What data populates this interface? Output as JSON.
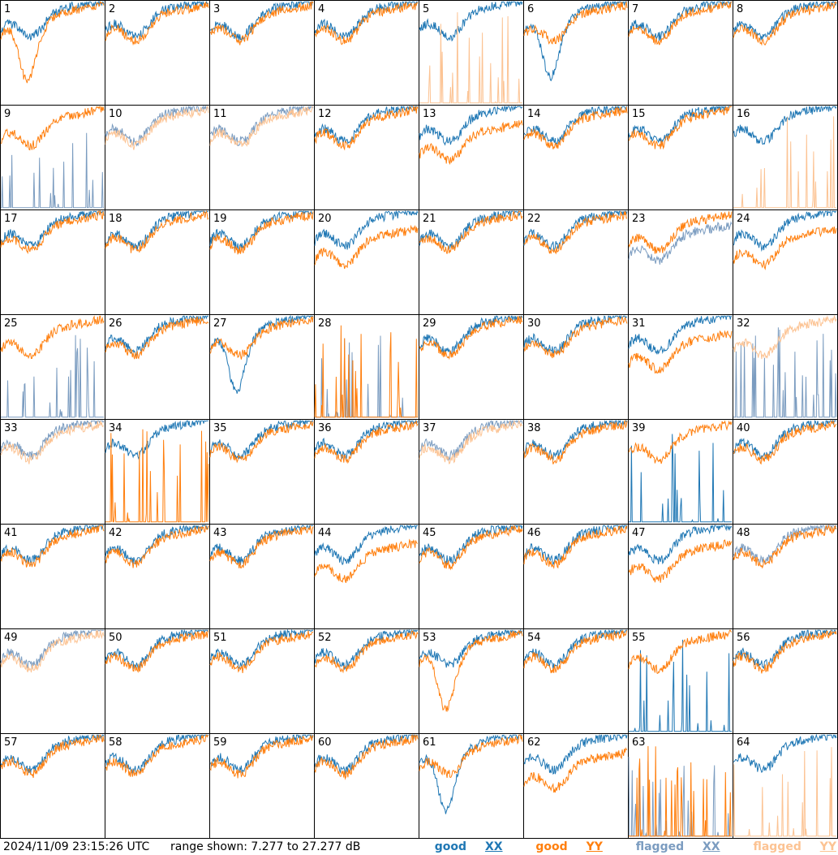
{
  "footer": {
    "timestamp": "2024/11/09 23:15:26 UTC",
    "range_text": "range shown: 7.277 to 27.277 dB"
  },
  "legend": {
    "good_xx_word": "good",
    "good_xx_pol": "XX",
    "good_yy_word": "good",
    "good_yy_pol": "YY",
    "flagged_xx_word": "flagged",
    "flagged_xx_pol": "XX",
    "flagged_yy_word": "flagged",
    "flagged_yy_pol": "YY"
  },
  "colors": {
    "good_xx": "#1f77b4",
    "good_yy": "#ff7f0e",
    "flagged_xx": "#7b9cc0",
    "flagged_yy": "#fcc393"
  },
  "chart_data": {
    "type": "line",
    "layout": "8x8 small multiples",
    "ylim": [
      7.277,
      27.277
    ],
    "yunit": "dB",
    "series_key": [
      "good XX",
      "good YY",
      "flagged XX",
      "flagged YY"
    ],
    "panels": [
      {
        "label": "1",
        "xx": "good",
        "yy": "good",
        "xx_style": "normal",
        "yy_style": "dip"
      },
      {
        "label": "2",
        "xx": "good",
        "yy": "good",
        "xx_style": "normal",
        "yy_style": "normal"
      },
      {
        "label": "3",
        "xx": "good",
        "yy": "good",
        "xx_style": "normal",
        "yy_style": "normal"
      },
      {
        "label": "4",
        "xx": "good",
        "yy": "good",
        "xx_style": "normal",
        "yy_style": "normal"
      },
      {
        "label": "5",
        "xx": "good",
        "yy": "flagged",
        "xx_style": "normal",
        "yy_style": "spiky"
      },
      {
        "label": "6",
        "xx": "good",
        "yy": "good",
        "xx_style": "dip",
        "yy_style": "normal"
      },
      {
        "label": "7",
        "xx": "good",
        "yy": "good",
        "xx_style": "normal",
        "yy_style": "normal"
      },
      {
        "label": "8",
        "xx": "good",
        "yy": "good",
        "xx_style": "normal",
        "yy_style": "normal"
      },
      {
        "label": "9",
        "xx": "flagged",
        "yy": "good",
        "xx_style": "spiky",
        "yy_style": "normal"
      },
      {
        "label": "10",
        "xx": "flagged",
        "yy": "flagged",
        "xx_style": "normal",
        "yy_style": "normal"
      },
      {
        "label": "11",
        "xx": "flagged",
        "yy": "flagged",
        "xx_style": "normal",
        "yy_style": "normal"
      },
      {
        "label": "12",
        "xx": "good",
        "yy": "good",
        "xx_style": "normal",
        "yy_style": "normal"
      },
      {
        "label": "13",
        "xx": "good",
        "yy": "good",
        "xx_style": "normal",
        "yy_style": "low"
      },
      {
        "label": "14",
        "xx": "good",
        "yy": "good",
        "xx_style": "normal",
        "yy_style": "normal"
      },
      {
        "label": "15",
        "xx": "good",
        "yy": "good",
        "xx_style": "normal",
        "yy_style": "normal"
      },
      {
        "label": "16",
        "xx": "good",
        "yy": "flagged",
        "xx_style": "normal",
        "yy_style": "spiky"
      },
      {
        "label": "17",
        "xx": "good",
        "yy": "good",
        "xx_style": "normal",
        "yy_style": "normal"
      },
      {
        "label": "18",
        "xx": "good",
        "yy": "good",
        "xx_style": "normal",
        "yy_style": "normal"
      },
      {
        "label": "19",
        "xx": "good",
        "yy": "good",
        "xx_style": "normal",
        "yy_style": "normal"
      },
      {
        "label": "20",
        "xx": "good",
        "yy": "good",
        "xx_style": "normal",
        "yy_style": "low"
      },
      {
        "label": "21",
        "xx": "good",
        "yy": "good",
        "xx_style": "normal",
        "yy_style": "normal"
      },
      {
        "label": "22",
        "xx": "good",
        "yy": "good",
        "xx_style": "normal",
        "yy_style": "normal"
      },
      {
        "label": "23",
        "xx": "flagged",
        "yy": "good",
        "xx_style": "low",
        "yy_style": "normal"
      },
      {
        "label": "24",
        "xx": "good",
        "yy": "good",
        "xx_style": "normal",
        "yy_style": "low"
      },
      {
        "label": "25",
        "xx": "flagged",
        "yy": "good",
        "xx_style": "spiky",
        "yy_style": "normal"
      },
      {
        "label": "26",
        "xx": "good",
        "yy": "good",
        "xx_style": "normal",
        "yy_style": "normal"
      },
      {
        "label": "27",
        "xx": "good",
        "yy": "good",
        "xx_style": "dip",
        "yy_style": "normal"
      },
      {
        "label": "28",
        "xx": "flagged",
        "yy": "good",
        "xx_style": "spiky",
        "yy_style": "spiky"
      },
      {
        "label": "29",
        "xx": "good",
        "yy": "good",
        "xx_style": "normal",
        "yy_style": "normal"
      },
      {
        "label": "30",
        "xx": "good",
        "yy": "good",
        "xx_style": "normal",
        "yy_style": "normal"
      },
      {
        "label": "31",
        "xx": "good",
        "yy": "good",
        "xx_style": "normal",
        "yy_style": "low"
      },
      {
        "label": "32",
        "xx": "flagged",
        "yy": "flagged",
        "xx_style": "spiky",
        "yy_style": "normal"
      },
      {
        "label": "33",
        "xx": "flagged",
        "yy": "flagged",
        "xx_style": "normal",
        "yy_style": "normal"
      },
      {
        "label": "34",
        "xx": "good",
        "yy": "good",
        "xx_style": "normal",
        "yy_style": "spiky"
      },
      {
        "label": "35",
        "xx": "good",
        "yy": "good",
        "xx_style": "normal",
        "yy_style": "normal"
      },
      {
        "label": "36",
        "xx": "good",
        "yy": "good",
        "xx_style": "normal",
        "yy_style": "normal"
      },
      {
        "label": "37",
        "xx": "flagged",
        "yy": "flagged",
        "xx_style": "normal",
        "yy_style": "normal"
      },
      {
        "label": "38",
        "xx": "good",
        "yy": "good",
        "xx_style": "normal",
        "yy_style": "normal"
      },
      {
        "label": "39",
        "xx": "good",
        "yy": "good",
        "xx_style": "spiky",
        "yy_style": "normal"
      },
      {
        "label": "40",
        "xx": "good",
        "yy": "good",
        "xx_style": "normal",
        "yy_style": "normal"
      },
      {
        "label": "41",
        "xx": "good",
        "yy": "good",
        "xx_style": "normal",
        "yy_style": "normal"
      },
      {
        "label": "42",
        "xx": "good",
        "yy": "good",
        "xx_style": "normal",
        "yy_style": "normal"
      },
      {
        "label": "43",
        "xx": "good",
        "yy": "good",
        "xx_style": "normal",
        "yy_style": "normal"
      },
      {
        "label": "44",
        "xx": "good",
        "yy": "good",
        "xx_style": "normal",
        "yy_style": "low"
      },
      {
        "label": "45",
        "xx": "good",
        "yy": "good",
        "xx_style": "normal",
        "yy_style": "normal"
      },
      {
        "label": "46",
        "xx": "good",
        "yy": "good",
        "xx_style": "normal",
        "yy_style": "normal"
      },
      {
        "label": "47",
        "xx": "good",
        "yy": "good",
        "xx_style": "normal",
        "yy_style": "low"
      },
      {
        "label": "48",
        "xx": "flagged",
        "yy": "good",
        "xx_style": "normal",
        "yy_style": "normal"
      },
      {
        "label": "49",
        "xx": "flagged",
        "yy": "flagged",
        "xx_style": "normal",
        "yy_style": "normal"
      },
      {
        "label": "50",
        "xx": "good",
        "yy": "good",
        "xx_style": "normal",
        "yy_style": "normal"
      },
      {
        "label": "51",
        "xx": "good",
        "yy": "good",
        "xx_style": "normal",
        "yy_style": "normal"
      },
      {
        "label": "52",
        "xx": "good",
        "yy": "good",
        "xx_style": "normal",
        "yy_style": "normal"
      },
      {
        "label": "53",
        "xx": "good",
        "yy": "good",
        "xx_style": "normal",
        "yy_style": "dip"
      },
      {
        "label": "54",
        "xx": "good",
        "yy": "good",
        "xx_style": "normal",
        "yy_style": "normal"
      },
      {
        "label": "55",
        "xx": "good",
        "yy": "good",
        "xx_style": "spiky",
        "yy_style": "normal"
      },
      {
        "label": "56",
        "xx": "good",
        "yy": "good",
        "xx_style": "normal",
        "yy_style": "normal"
      },
      {
        "label": "57",
        "xx": "good",
        "yy": "good",
        "xx_style": "normal",
        "yy_style": "normal"
      },
      {
        "label": "58",
        "xx": "good",
        "yy": "good",
        "xx_style": "normal",
        "yy_style": "normal"
      },
      {
        "label": "59",
        "xx": "good",
        "yy": "good",
        "xx_style": "normal",
        "yy_style": "normal"
      },
      {
        "label": "60",
        "xx": "good",
        "yy": "good",
        "xx_style": "normal",
        "yy_style": "normal"
      },
      {
        "label": "61",
        "xx": "good",
        "yy": "good",
        "xx_style": "dip",
        "yy_style": "normal"
      },
      {
        "label": "62",
        "xx": "good",
        "yy": "good",
        "xx_style": "normal",
        "yy_style": "low"
      },
      {
        "label": "63",
        "xx": "flagged",
        "yy": "good",
        "xx_style": "spiky",
        "yy_style": "spiky"
      },
      {
        "label": "64",
        "xx": "good",
        "yy": "flagged",
        "xx_style": "normal",
        "yy_style": "spiky"
      }
    ]
  }
}
